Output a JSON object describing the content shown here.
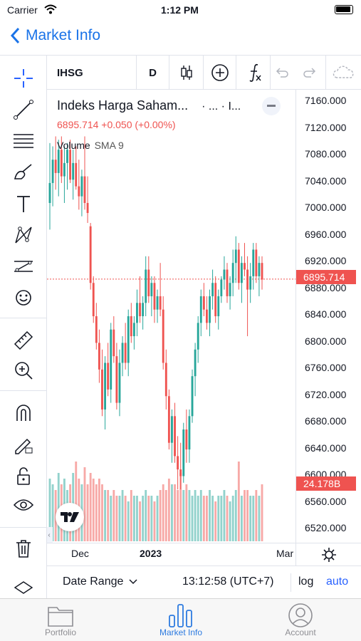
{
  "status_bar": {
    "carrier": "Carrier",
    "time": "1:12 PM"
  },
  "nav": {
    "back_label": "Market Info"
  },
  "toolbar_top": {
    "symbol": "IHSG",
    "interval": "D"
  },
  "legend": {
    "title": "Indeks Harga Saham...",
    "dots": "· ...  · I...",
    "price_line": "6895.714 +0.050 (+0.00%)",
    "volume_label": "Volume",
    "volume_sma": "SMA 9"
  },
  "price_axis": {
    "ticks": [
      "7160.000",
      "7120.000",
      "7080.000",
      "7040.000",
      "7000.000",
      "6960.000",
      "6920.000",
      "6880.000",
      "6840.000",
      "6800.000",
      "6760.000",
      "6720.000",
      "6680.000",
      "6640.000",
      "6600.000",
      "6560.000",
      "6520.000"
    ],
    "last_price_label": "6895.714",
    "volume_label": "24.178B"
  },
  "time_axis": {
    "labels": [
      "Dec",
      "2023",
      "Mar"
    ]
  },
  "bottom_bar": {
    "date_range": "Date Range",
    "clock": "13:12:58 (UTC+7)",
    "log": "log",
    "auto": "auto"
  },
  "tabs": [
    {
      "label": "Portfolio"
    },
    {
      "label": "Market Info"
    },
    {
      "label": "Account"
    }
  ],
  "colors": {
    "accent": "#1a73e8",
    "up": "#26a69a",
    "down": "#ef5350",
    "tab_active": "#2d7be0"
  },
  "chart_data": {
    "type": "candlestick",
    "ylim": [
      6500,
      7180
    ],
    "last_price": 6895.714,
    "candles": [
      {
        "o": 7010,
        "h": 7100,
        "l": 6970,
        "c": 7040
      },
      {
        "o": 7040,
        "h": 7095,
        "l": 7005,
        "c": 7075
      },
      {
        "o": 7075,
        "h": 7110,
        "l": 7030,
        "c": 7055
      },
      {
        "o": 7055,
        "h": 7105,
        "l": 7020,
        "c": 7090
      },
      {
        "o": 7090,
        "h": 7110,
        "l": 7040,
        "c": 7050
      },
      {
        "o": 7050,
        "h": 7095,
        "l": 7010,
        "c": 7070
      },
      {
        "o": 7070,
        "h": 7100,
        "l": 7030,
        "c": 7090
      },
      {
        "o": 7090,
        "h": 7105,
        "l": 7040,
        "c": 7045
      },
      {
        "o": 7045,
        "h": 7090,
        "l": 7015,
        "c": 7070
      },
      {
        "o": 7070,
        "h": 7095,
        "l": 7030,
        "c": 7035
      },
      {
        "o": 7035,
        "h": 7075,
        "l": 7000,
        "c": 7020
      },
      {
        "o": 7020,
        "h": 7060,
        "l": 6990,
        "c": 7050
      },
      {
        "o": 7050,
        "h": 7110,
        "l": 7000,
        "c": 7010
      },
      {
        "o": 7010,
        "h": 7050,
        "l": 6980,
        "c": 6995
      },
      {
        "o": 6975,
        "h": 6980,
        "l": 6880,
        "c": 6890
      },
      {
        "o": 6890,
        "h": 6900,
        "l": 6830,
        "c": 6840
      },
      {
        "o": 6840,
        "h": 6860,
        "l": 6790,
        "c": 6800
      },
      {
        "o": 6800,
        "h": 6820,
        "l": 6740,
        "c": 6760
      },
      {
        "o": 6760,
        "h": 6790,
        "l": 6690,
        "c": 6700
      },
      {
        "o": 6700,
        "h": 6780,
        "l": 6670,
        "c": 6770
      },
      {
        "o": 6770,
        "h": 6800,
        "l": 6720,
        "c": 6730
      },
      {
        "o": 6730,
        "h": 6830,
        "l": 6710,
        "c": 6820
      },
      {
        "o": 6820,
        "h": 6840,
        "l": 6770,
        "c": 6780
      },
      {
        "o": 6780,
        "h": 6800,
        "l": 6700,
        "c": 6710
      },
      {
        "o": 6710,
        "h": 6790,
        "l": 6690,
        "c": 6770
      },
      {
        "o": 6770,
        "h": 6810,
        "l": 6750,
        "c": 6800
      },
      {
        "o": 6800,
        "h": 6830,
        "l": 6760,
        "c": 6770
      },
      {
        "o": 6770,
        "h": 6850,
        "l": 6750,
        "c": 6840
      },
      {
        "o": 6840,
        "h": 6860,
        "l": 6800,
        "c": 6810
      },
      {
        "o": 6810,
        "h": 6840,
        "l": 6790,
        "c": 6830
      },
      {
        "o": 6830,
        "h": 6880,
        "l": 6810,
        "c": 6860
      },
      {
        "o": 6860,
        "h": 6900,
        "l": 6830,
        "c": 6840
      },
      {
        "o": 6840,
        "h": 6870,
        "l": 6820,
        "c": 6860
      },
      {
        "o": 6860,
        "h": 6930,
        "l": 6840,
        "c": 6910
      },
      {
        "o": 6910,
        "h": 6930,
        "l": 6860,
        "c": 6870
      },
      {
        "o": 6870,
        "h": 6900,
        "l": 6840,
        "c": 6890
      },
      {
        "o": 6890,
        "h": 6900,
        "l": 6830,
        "c": 6850
      },
      {
        "o": 6850,
        "h": 6880,
        "l": 6830,
        "c": 6870
      },
      {
        "o": 6870,
        "h": 6920,
        "l": 6840,
        "c": 6850
      },
      {
        "o": 6850,
        "h": 6870,
        "l": 6760,
        "c": 6770
      },
      {
        "o": 6770,
        "h": 6790,
        "l": 6700,
        "c": 6720
      },
      {
        "o": 6720,
        "h": 6730,
        "l": 6640,
        "c": 6650
      },
      {
        "o": 6650,
        "h": 6700,
        "l": 6620,
        "c": 6690
      },
      {
        "o": 6690,
        "h": 6710,
        "l": 6620,
        "c": 6630
      },
      {
        "o": 6630,
        "h": 6660,
        "l": 6580,
        "c": 6610
      },
      {
        "o": 6610,
        "h": 6650,
        "l": 6580,
        "c": 6600
      },
      {
        "o": 6600,
        "h": 6680,
        "l": 6590,
        "c": 6670
      },
      {
        "o": 6670,
        "h": 6700,
        "l": 6620,
        "c": 6640
      },
      {
        "o": 6640,
        "h": 6700,
        "l": 6620,
        "c": 6690
      },
      {
        "o": 6690,
        "h": 6760,
        "l": 6680,
        "c": 6750
      },
      {
        "o": 6750,
        "h": 6800,
        "l": 6720,
        "c": 6790
      },
      {
        "o": 6790,
        "h": 6840,
        "l": 6770,
        "c": 6830
      },
      {
        "o": 6830,
        "h": 6880,
        "l": 6810,
        "c": 6870
      },
      {
        "o": 6870,
        "h": 6890,
        "l": 6840,
        "c": 6850
      },
      {
        "o": 6850,
        "h": 6870,
        "l": 6820,
        "c": 6830
      },
      {
        "o": 6830,
        "h": 6880,
        "l": 6810,
        "c": 6870
      },
      {
        "o": 6870,
        "h": 6910,
        "l": 6850,
        "c": 6890
      },
      {
        "o": 6890,
        "h": 6900,
        "l": 6830,
        "c": 6840
      },
      {
        "o": 6840,
        "h": 6880,
        "l": 6820,
        "c": 6870
      },
      {
        "o": 6870,
        "h": 6900,
        "l": 6860,
        "c": 6895
      },
      {
        "o": 6895,
        "h": 6930,
        "l": 6880,
        "c": 6910
      },
      {
        "o": 6910,
        "h": 6920,
        "l": 6860,
        "c": 6870
      },
      {
        "o": 6870,
        "h": 6900,
        "l": 6850,
        "c": 6890
      },
      {
        "o": 6890,
        "h": 6940,
        "l": 6870,
        "c": 6920
      },
      {
        "o": 6920,
        "h": 6960,
        "l": 6890,
        "c": 6940
      },
      {
        "o": 6940,
        "h": 6950,
        "l": 6880,
        "c": 6890
      },
      {
        "o": 6890,
        "h": 6930,
        "l": 6860,
        "c": 6920
      },
      {
        "o": 6920,
        "h": 6950,
        "l": 6900,
        "c": 6910
      },
      {
        "o": 6910,
        "h": 6930,
        "l": 6810,
        "c": 6880
      },
      {
        "o": 6880,
        "h": 6920,
        "l": 6860,
        "c": 6900
      },
      {
        "o": 6900,
        "h": 6950,
        "l": 6880,
        "c": 6940
      },
      {
        "o": 6940,
        "h": 6950,
        "l": 6890,
        "c": 6900
      },
      {
        "o": 6900,
        "h": 6930,
        "l": 6870,
        "c": 6920
      },
      {
        "o": 6920,
        "h": 6930,
        "l": 6880,
        "c": 6895
      }
    ],
    "volumes": [
      0.55,
      0.5,
      0.45,
      0.6,
      0.5,
      0.55,
      0.45,
      0.5,
      0.6,
      0.7,
      0.55,
      0.5,
      0.65,
      0.5,
      0.6,
      0.55,
      0.5,
      0.55,
      0.5,
      0.45,
      0.45,
      0.4,
      0.45,
      0.4,
      0.4,
      0.45,
      0.4,
      0.35,
      0.45,
      0.4,
      0.4,
      0.35,
      0.4,
      0.45,
      0.4,
      0.4,
      0.35,
      0.4,
      0.45,
      0.5,
      0.45,
      0.55,
      0.5,
      0.5,
      0.45,
      0.6,
      0.45,
      0.5,
      0.45,
      0.4,
      0.45,
      0.4,
      0.45,
      0.4,
      0.4,
      0.45,
      0.4,
      0.35,
      0.4,
      0.4,
      0.45,
      0.4,
      0.35,
      0.4,
      0.45,
      0.7,
      0.4,
      0.45,
      0.45,
      0.4,
      0.4,
      0.45,
      0.4,
      0.5,
      0.4
    ]
  }
}
